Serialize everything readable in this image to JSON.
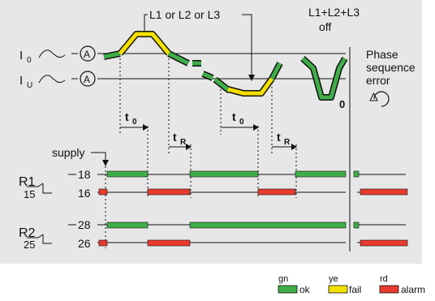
{
  "labels": {
    "top_condition": "L1 or L2 or L3",
    "off_line1": "L1+L2+L3",
    "off_line2": "off",
    "i0": "I",
    "i0_sub": "0",
    "iu": "I",
    "iu_sub": "U",
    "a_symbol": "A",
    "zero": "0",
    "phase_line1": "Phase",
    "phase_line2": "sequence",
    "phase_line3": "error",
    "t0_a": "t",
    "t0_a_sub": "0",
    "tr_a": "t",
    "tr_a_sub": "R",
    "t0_b": "t",
    "t0_b_sub": "0",
    "tr_b": "t",
    "tr_b_sub": "R",
    "supply": "supply",
    "r1": "R1",
    "r1_common": "15",
    "r1_no": "18",
    "r1_nc": "16",
    "r2": "R2",
    "r2_common": "25",
    "r2_no": "28",
    "r2_nc": "26"
  },
  "legend": [
    {
      "code": "gn",
      "text": "ok",
      "color": "#3fae49"
    },
    {
      "code": "ye",
      "text": "fail",
      "color": "#f4e000"
    },
    {
      "code": "rd",
      "text": "alarm",
      "color": "#e83a2f"
    }
  ],
  "colors": {
    "panel": "#e7e7e7",
    "green": "#3fae49",
    "yellow": "#f4e000",
    "red": "#e83a2f",
    "line": "#111111"
  }
}
